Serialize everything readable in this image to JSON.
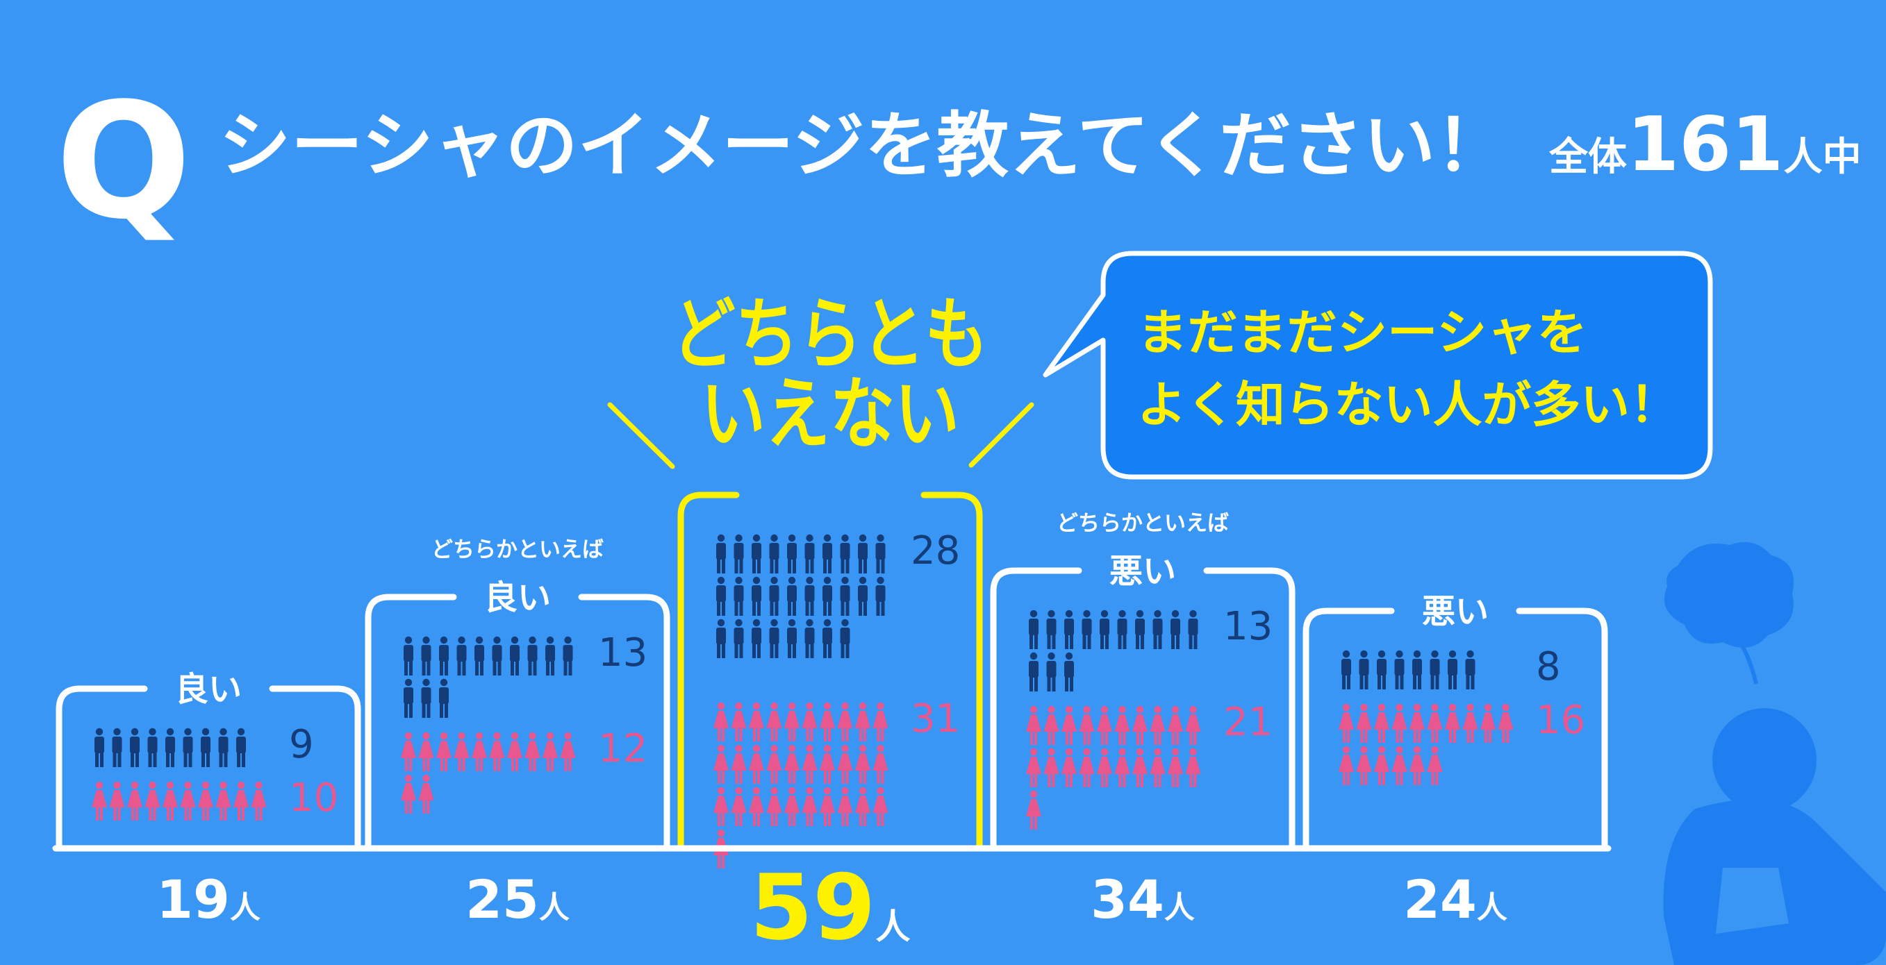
{
  "header": {
    "q_mark": "Q",
    "question": "シーシャのイメージを教えてください！",
    "total_prefix": "全体",
    "total_number": "161",
    "total_suffix": "人中"
  },
  "callout": {
    "line1": "まだまだシーシャを",
    "line2": "よく知らない人が多い！"
  },
  "highlight": {
    "line1": "どちらとも",
    "line2": "いえない"
  },
  "colors": {
    "background": "#3a96f5",
    "male": "#143c78",
    "female": "#e8588e",
    "highlight": "#fff200",
    "callout_bg": "#1580f5",
    "white": "#ffffff",
    "decoration": "#1f7ff0"
  },
  "chart_data": {
    "type": "pictogram-bar",
    "unit": "人",
    "categories": [
      {
        "label": "良い",
        "sublabel": "",
        "male": 9,
        "female": 10,
        "total": 19
      },
      {
        "label": "良い",
        "sublabel": "どちらかといえば",
        "male": 13,
        "female": 12,
        "total": 25
      },
      {
        "label": "",
        "sublabel": "",
        "male": 28,
        "female": 31,
        "total": 59,
        "highlight": true
      },
      {
        "label": "悪い",
        "sublabel": "どちらかといえば",
        "male": 13,
        "female": 21,
        "total": 34
      },
      {
        "label": "悪い",
        "sublabel": "",
        "male": 8,
        "female": 16,
        "total": 24
      }
    ],
    "series": [
      {
        "key": "male",
        "color": "#143c78"
      },
      {
        "key": "female",
        "color": "#e8588e"
      }
    ]
  }
}
